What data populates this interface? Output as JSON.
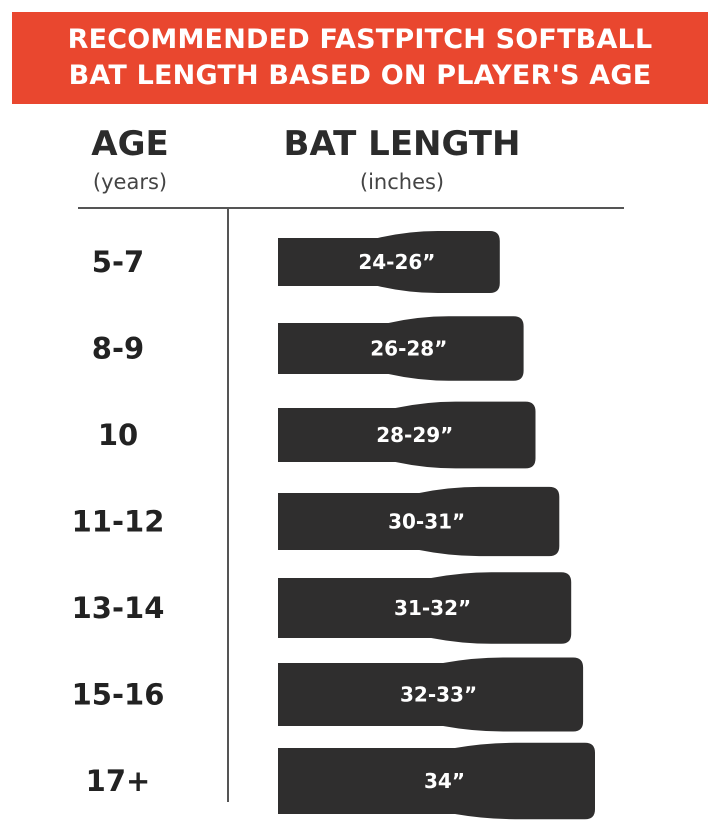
{
  "title_lines": [
    "RECOMMENDED FASTPITCH SOFTBALL",
    "BAT LENGTH BASED ON PLAYER'S AGE"
  ],
  "colors": {
    "banner": "#e9472f",
    "bat": "#2f2e2e",
    "text": "#2b2b2b"
  },
  "chart_data": {
    "type": "bar",
    "orientation": "horizontal",
    "categories": [
      "5-7",
      "8-9",
      "10",
      "11-12",
      "13-14",
      "15-16",
      "17+"
    ],
    "series": [
      {
        "values": [
          [
            24,
            26
          ],
          [
            26,
            28
          ],
          [
            28,
            29
          ],
          [
            30,
            31
          ],
          [
            31,
            32
          ],
          [
            32,
            33
          ],
          [
            34,
            34
          ]
        ]
      }
    ],
    "labels": [
      "24-26”",
      "26-28”",
      "28-29”",
      "30-31”",
      "31-32”",
      "32-33”",
      "34”"
    ],
    "title": "RECOMMENDED FASTPITCH SOFTBALL BAT LENGTH BASED ON PLAYER'S AGE",
    "xlabel": "BAT LENGTH",
    "xunit": "(inches)",
    "ylabel": "AGE",
    "yunit": "(years)",
    "xlim": [
      0,
      36
    ],
    "grid": false,
    "legend": "none"
  }
}
